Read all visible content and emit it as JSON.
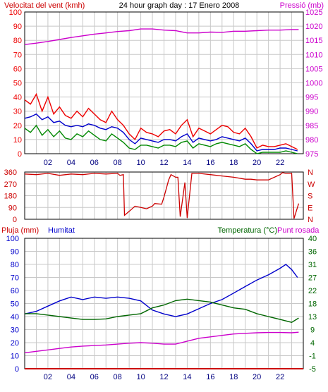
{
  "header": {
    "left_title": "Velocitat del vent (kmh)",
    "center_title": "24 hour graph day : 17 Enero 2008",
    "right_title": "Pressió (mb)"
  },
  "colors": {
    "wind_gust": "#ee0000",
    "wind_avg": "#0000cc",
    "wind_low": "#008800",
    "pressure": "#cc00cc",
    "direction": "#cc0000",
    "humidity": "#0000cc",
    "temperature": "#006600",
    "dewpoint": "#cc00cc",
    "rain": "#cc0000",
    "grid": "#c8c8c8",
    "frame": "#000000"
  },
  "chart_data": [
    {
      "type": "line",
      "name": "wind-pressure",
      "x_ticks": [
        "02",
        "04",
        "06",
        "08",
        "10",
        "12",
        "14",
        "16",
        "18",
        "20",
        "22"
      ],
      "x_range_hours": [
        0,
        24
      ],
      "y_left": {
        "label": "Velocitat del vent (kmh)",
        "ticks": [
          0,
          10,
          20,
          30,
          40,
          50,
          60,
          70,
          80,
          90,
          100
        ],
        "range": [
          0,
          100
        ]
      },
      "y_right": {
        "label": "Pressió (mb)",
        "ticks": [
          975,
          980,
          985,
          990,
          995,
          1000,
          1005,
          1010,
          1015,
          1020,
          1025
        ],
        "range": [
          975,
          1025
        ]
      },
      "grid": true,
      "series": [
        {
          "key": "gust",
          "axis": "left",
          "x": [
            0,
            0.5,
            1,
            1.5,
            2,
            2.5,
            3,
            3.5,
            4,
            4.5,
            5,
            5.5,
            6,
            6.5,
            7,
            7.5,
            8,
            8.5,
            9,
            9.5,
            10,
            10.5,
            11,
            11.5,
            12,
            12.5,
            13,
            13.5,
            14,
            14.5,
            15,
            15.5,
            16,
            16.5,
            17,
            17.5,
            18,
            18.5,
            19,
            19.5,
            20,
            20.5,
            21,
            21.5,
            22,
            22.5,
            23,
            23.5
          ],
          "y": [
            38,
            35,
            42,
            30,
            40,
            28,
            33,
            27,
            25,
            30,
            26,
            32,
            28,
            24,
            22,
            30,
            24,
            20,
            14,
            10,
            18,
            15,
            14,
            12,
            16,
            17,
            14,
            20,
            24,
            12,
            18,
            16,
            14,
            17,
            20,
            19,
            15,
            14,
            18,
            12,
            4,
            6,
            5,
            5,
            6,
            7,
            5,
            3
          ]
        },
        {
          "key": "average",
          "axis": "left",
          "x": [
            0,
            0.5,
            1,
            1.5,
            2,
            2.5,
            3,
            3.5,
            4,
            4.5,
            5,
            5.5,
            6,
            6.5,
            7,
            7.5,
            8,
            8.5,
            9,
            9.5,
            10,
            10.5,
            11,
            11.5,
            12,
            12.5,
            13,
            13.5,
            14,
            14.5,
            15,
            15.5,
            16,
            16.5,
            17,
            17.5,
            18,
            18.5,
            19,
            19.5,
            20,
            20.5,
            21,
            21.5,
            22,
            22.5,
            23,
            23.5
          ],
          "y": [
            25,
            26,
            28,
            24,
            26,
            22,
            23,
            20,
            19,
            20,
            19,
            21,
            20,
            18,
            17,
            19,
            18,
            15,
            10,
            7,
            11,
            10,
            9,
            8,
            10,
            10,
            9,
            12,
            14,
            8,
            11,
            10,
            9,
            10,
            12,
            11,
            10,
            9,
            11,
            7,
            2,
            3,
            3,
            3,
            4,
            4,
            3,
            2
          ]
        },
        {
          "key": "low",
          "axis": "left",
          "x": [
            0,
            0.5,
            1,
            1.5,
            2,
            2.5,
            3,
            3.5,
            4,
            4.5,
            5,
            5.5,
            6,
            6.5,
            7,
            7.5,
            8,
            8.5,
            9,
            9.5,
            10,
            10.5,
            11,
            11.5,
            12,
            12.5,
            13,
            13.5,
            14,
            14.5,
            15,
            15.5,
            16,
            16.5,
            17,
            17.5,
            18,
            18.5,
            19,
            19.5,
            20,
            20.5,
            21,
            21.5,
            22,
            22.5,
            23,
            23.5
          ],
          "y": [
            18,
            15,
            20,
            13,
            17,
            12,
            16,
            11,
            10,
            14,
            12,
            16,
            13,
            10,
            9,
            14,
            11,
            8,
            4,
            3,
            6,
            6,
            5,
            4,
            6,
            6,
            5,
            8,
            9,
            4,
            7,
            6,
            5,
            7,
            8,
            7,
            6,
            5,
            7,
            3,
            0,
            1,
            1,
            1,
            1,
            2,
            1,
            0
          ]
        },
        {
          "key": "pressure",
          "axis": "right",
          "x": [
            0,
            1,
            2,
            3,
            4,
            5,
            6,
            7,
            8,
            9,
            10,
            11,
            12,
            13,
            14,
            15,
            16,
            17,
            18,
            19,
            20,
            21,
            22,
            23,
            23.6
          ],
          "y": [
            1013.5,
            1014,
            1014.6,
            1015.3,
            1016,
            1016.6,
            1017.2,
            1017.6,
            1018.1,
            1018.4,
            1019,
            1019,
            1018.6,
            1018.4,
            1017.6,
            1017.6,
            1017.9,
            1017.8,
            1018.2,
            1018.2,
            1018.4,
            1018.6,
            1018.6,
            1018.8,
            1018.8
          ]
        }
      ]
    },
    {
      "type": "line",
      "name": "wind-direction",
      "x_range_hours": [
        0,
        24
      ],
      "y_left": {
        "ticks": [
          0,
          90,
          180,
          270,
          360
        ],
        "range": [
          0,
          360
        ]
      },
      "y_right": {
        "ticks": [
          "N",
          "W",
          "S",
          "E",
          "N"
        ]
      },
      "grid": true,
      "series": [
        {
          "key": "direction",
          "x": [
            0,
            1,
            2,
            3,
            4,
            5,
            6,
            7,
            8,
            8.2,
            8.5,
            8.6,
            9,
            9.5,
            10,
            10.5,
            11,
            11.2,
            11.8,
            12,
            12.4,
            12.6,
            13,
            13.2,
            13.4,
            13.8,
            14,
            14.4,
            15,
            16,
            17,
            18,
            19,
            19.5,
            20,
            21,
            22,
            22.2,
            22.5,
            23,
            23.2,
            23.6
          ],
          "y": [
            345,
            340,
            350,
            335,
            345,
            340,
            350,
            345,
            350,
            335,
            340,
            30,
            60,
            100,
            90,
            80,
            100,
            120,
            115,
            170,
            300,
            340,
            320,
            320,
            20,
            280,
            10,
            350,
            350,
            340,
            330,
            320,
            305,
            305,
            300,
            300,
            340,
            355,
            350,
            350,
            5,
            120
          ]
        }
      ]
    },
    {
      "type": "line",
      "name": "humidity-temperature",
      "y_left": {
        "label": "Pluja (mm)",
        "ticks": [
          0,
          10,
          20,
          30,
          40,
          50,
          60,
          70,
          80,
          90,
          100
        ],
        "range": [
          0,
          100
        ]
      },
      "y_left_secondary": {
        "label": "Humitat"
      },
      "y_right": {
        "label": "Temperatura (°C)",
        "ticks": [
          -5,
          -1,
          4,
          9,
          13,
          18,
          22,
          27,
          31,
          36,
          40
        ],
        "range": [
          -5,
          40
        ]
      },
      "y_right_secondary": {
        "label": "Punt rosada"
      },
      "x_ticks": [
        "02",
        "04",
        "06",
        "08",
        "10",
        "12",
        "14",
        "16",
        "18",
        "20",
        "22"
      ],
      "x_range_hours": [
        0,
        24
      ],
      "grid": true,
      "series": [
        {
          "key": "humidity",
          "axis": "left",
          "x": [
            0,
            1,
            2,
            3,
            4,
            5,
            6,
            7,
            8,
            9,
            10,
            11,
            12,
            13,
            14,
            15,
            16,
            17,
            18,
            19,
            20,
            21,
            22,
            22.5,
            23,
            23.5
          ],
          "y": [
            42,
            44,
            48,
            52,
            55,
            53,
            55,
            54,
            55,
            54,
            52,
            45,
            42,
            40,
            42,
            46,
            50,
            53,
            58,
            63,
            68,
            72,
            77,
            80,
            76,
            70
          ],
          "note_y_scale": "percent"
        },
        {
          "key": "temperature",
          "axis": "right",
          "x": [
            0,
            1,
            2,
            3,
            4,
            5,
            6,
            7,
            8,
            9,
            10,
            11,
            12,
            13,
            14,
            15,
            16,
            17,
            18,
            19,
            20,
            21,
            22,
            23,
            23.6
          ],
          "y": [
            14,
            14,
            13.5,
            13,
            12.5,
            12,
            12,
            12.2,
            13,
            13.5,
            14,
            16,
            17,
            18.5,
            19,
            18.5,
            18,
            17,
            16,
            15.5,
            14,
            13,
            12,
            11,
            12.5
          ]
        },
        {
          "key": "dewpoint",
          "axis": "right",
          "x": [
            0,
            1,
            2,
            3,
            4,
            5,
            6,
            7,
            8,
            9,
            10,
            11,
            12,
            13,
            14,
            15,
            16,
            17,
            18,
            19,
            20,
            21,
            22,
            23,
            23.6
          ],
          "y": [
            0.5,
            1,
            1.5,
            2,
            2.5,
            2.8,
            3,
            3.2,
            3.5,
            3.8,
            4,
            3.8,
            3.5,
            3.5,
            4.5,
            5.5,
            6,
            6.5,
            7,
            7.2,
            7.4,
            7.5,
            7.5,
            7.4,
            7.6
          ]
        },
        {
          "key": "rain",
          "axis": "left",
          "x": [
            0,
            24
          ],
          "y": [
            0,
            0
          ]
        }
      ]
    }
  ],
  "panel3_labels": {
    "rain_label": "Pluja (mm)",
    "humidity_label": "Humitat",
    "temp_label": "Temperatura (°C)",
    "dew_label": "Punt rosada"
  }
}
